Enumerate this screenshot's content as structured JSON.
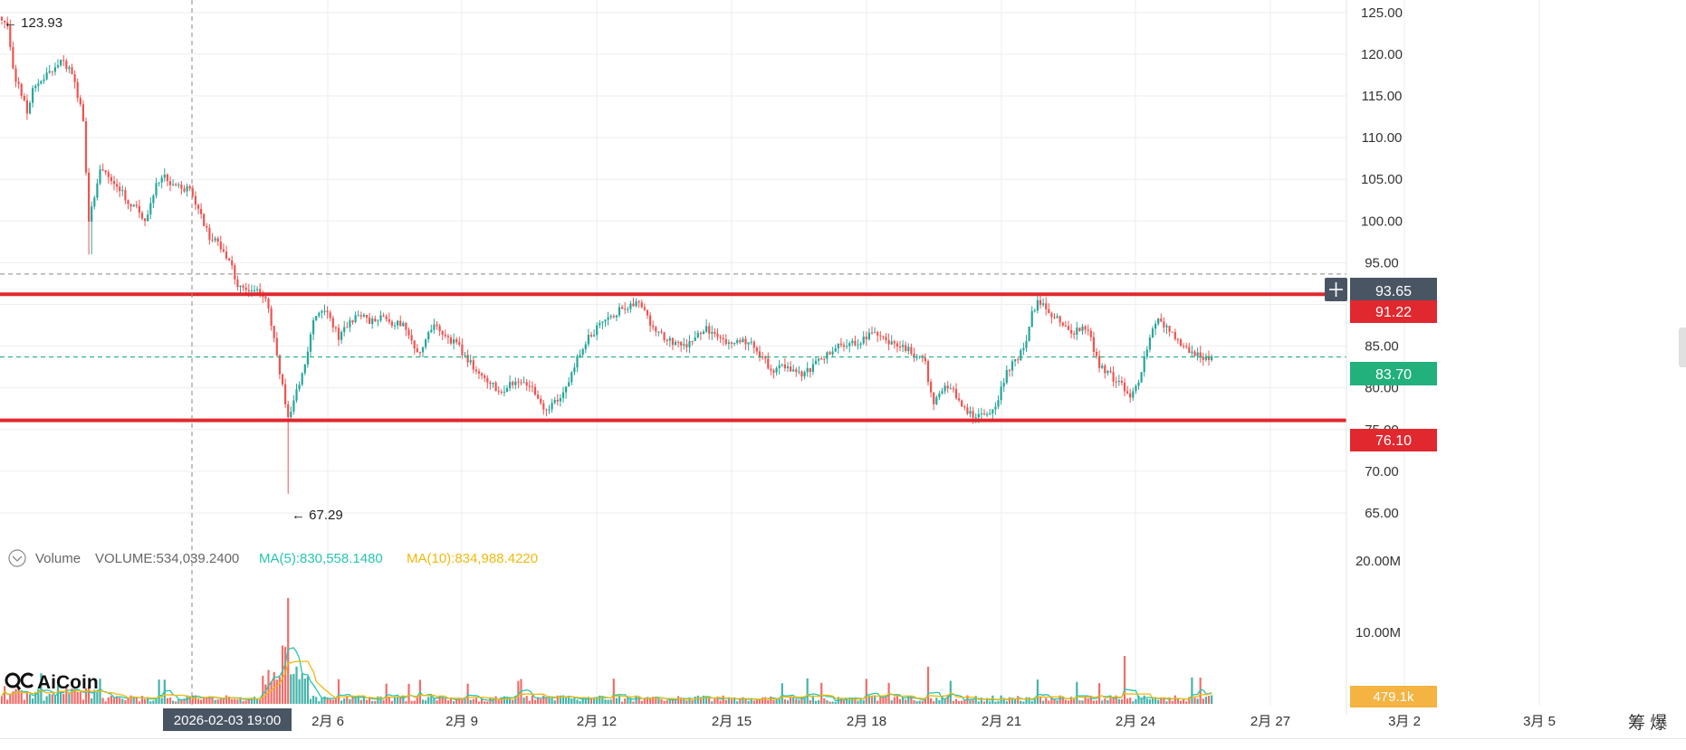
{
  "colors": {
    "up": "#26a69a",
    "down": "#ef5350",
    "red_line": "#e0282e",
    "current_price": "#22b07d",
    "crosshair_box": "#4a5564",
    "volume_box": "#f5b342",
    "ma5": "#26c6b0",
    "ma10": "#f0b90b",
    "grid": "#eeeeee"
  },
  "crosshair": {
    "price": "93.65",
    "time": "2026-02-03 19:00",
    "plus_icon": "plus-icon"
  },
  "markers": {
    "high": "← 123.93",
    "low": "← 67.29"
  },
  "levels": {
    "resistance": "91.22",
    "current": "83.70",
    "support": "76.10"
  },
  "volume_panel": {
    "toggle_icon": "chevron-down-circle-icon",
    "label": "Volume",
    "volume": "VOLUME:534,039.2400",
    "ma5": "MA(5):830,558.1480",
    "ma10": "MA(10):834,988.4220",
    "last_value": "479.1k"
  },
  "logo": {
    "text": "AiCoin",
    "icon": "aicoin-logo-icon"
  },
  "corner_text": "筹 爆",
  "chart_data": {
    "type": "candlestick",
    "price_axis": {
      "ticks": [
        "125.00",
        "120.00",
        "115.00",
        "110.00",
        "105.00",
        "100.00",
        "95.00",
        "90.00",
        "85.00",
        "80.00",
        "75.00",
        "70.00",
        "65.00"
      ],
      "range": [
        62.5,
        126.5
      ]
    },
    "volume_axis": {
      "ticks": [
        "20.00M",
        "10.00M"
      ],
      "range": [
        0,
        21000000
      ]
    },
    "time_axis": {
      "ticks": [
        "2月 6",
        "2月 9",
        "2月 12",
        "2月 15",
        "2月 18",
        "2月 21",
        "2月 24",
        "2月 27",
        "3月 2",
        "3月 5"
      ]
    },
    "horizontal_lines": [
      {
        "price": 91.22,
        "label": "91.22",
        "style": "solid-red"
      },
      {
        "price": 76.1,
        "label": "76.10",
        "style": "solid-red"
      },
      {
        "price": 83.7,
        "label": "83.70",
        "style": "dashed-green"
      },
      {
        "price": 93.65,
        "label": "93.65",
        "style": "dashed-gray"
      }
    ],
    "path": [
      [
        0,
        124.5
      ],
      [
        8,
        123.5
      ],
      [
        14,
        118
      ],
      [
        22,
        116
      ],
      [
        30,
        113
      ],
      [
        38,
        116.5
      ],
      [
        48,
        117
      ],
      [
        58,
        118
      ],
      [
        66,
        119
      ],
      [
        76,
        118.5
      ],
      [
        84,
        116
      ],
      [
        92,
        112
      ],
      [
        98,
        100
      ],
      [
        104,
        103
      ],
      [
        110,
        106
      ],
      [
        120,
        105.5
      ],
      [
        132,
        104
      ],
      [
        142,
        102
      ],
      [
        150,
        102
      ],
      [
        160,
        100
      ],
      [
        168,
        103
      ],
      [
        178,
        105.5
      ],
      [
        190,
        104.5
      ],
      [
        200,
        104
      ],
      [
        212,
        103.5
      ],
      [
        220,
        101
      ],
      [
        232,
        98
      ],
      [
        244,
        97
      ],
      [
        254,
        95
      ],
      [
        264,
        92
      ],
      [
        274,
        91.5
      ],
      [
        284,
        92
      ],
      [
        294,
        90.5
      ],
      [
        302,
        86
      ],
      [
        312,
        80
      ],
      [
        318,
        76.5
      ],
      [
        326,
        79
      ],
      [
        336,
        82
      ],
      [
        346,
        88
      ],
      [
        354,
        89.5
      ],
      [
        364,
        88.5
      ],
      [
        374,
        86
      ],
      [
        386,
        88
      ],
      [
        398,
        88.5
      ],
      [
        410,
        88
      ],
      [
        420,
        88.5
      ],
      [
        430,
        87.5
      ],
      [
        440,
        88
      ],
      [
        452,
        86.5
      ],
      [
        462,
        84
      ],
      [
        472,
        86.5
      ],
      [
        482,
        87.5
      ],
      [
        494,
        86
      ],
      [
        506,
        85
      ],
      [
        516,
        83.5
      ],
      [
        530,
        81.5
      ],
      [
        542,
        80.5
      ],
      [
        554,
        79.5
      ],
      [
        566,
        80.5
      ],
      [
        578,
        81
      ],
      [
        590,
        79.5
      ],
      [
        602,
        77.5
      ],
      [
        614,
        78.5
      ],
      [
        626,
        80
      ],
      [
        638,
        83.5
      ],
      [
        650,
        86
      ],
      [
        662,
        87.5
      ],
      [
        674,
        88.5
      ],
      [
        686,
        89.5
      ],
      [
        698,
        90
      ],
      [
        706,
        90.5
      ],
      [
        716,
        88
      ],
      [
        728,
        86.5
      ],
      [
        742,
        85.5
      ],
      [
        756,
        85
      ],
      [
        768,
        86
      ],
      [
        780,
        87
      ],
      [
        792,
        86.5
      ],
      [
        802,
        85
      ],
      [
        814,
        85.5
      ],
      [
        828,
        85.5
      ],
      [
        840,
        84
      ],
      [
        852,
        82
      ],
      [
        864,
        82.5
      ],
      [
        876,
        82
      ],
      [
        888,
        81.5
      ],
      [
        900,
        83
      ],
      [
        912,
        84
      ],
      [
        924,
        85
      ],
      [
        936,
        85.5
      ],
      [
        948,
        85.5
      ],
      [
        960,
        86.5
      ],
      [
        972,
        86
      ],
      [
        984,
        85.5
      ],
      [
        996,
        85
      ],
      [
        1010,
        84
      ],
      [
        1022,
        83
      ],
      [
        1030,
        78
      ],
      [
        1042,
        80
      ],
      [
        1054,
        79.5
      ],
      [
        1066,
        77.5
      ],
      [
        1078,
        76.5
      ],
      [
        1090,
        76.5
      ],
      [
        1102,
        78.5
      ],
      [
        1112,
        82
      ],
      [
        1124,
        83.5
      ],
      [
        1134,
        86
      ],
      [
        1140,
        89
      ],
      [
        1146,
        90.5
      ],
      [
        1154,
        89.5
      ],
      [
        1166,
        88.5
      ],
      [
        1176,
        87
      ],
      [
        1186,
        86.5
      ],
      [
        1196,
        87.5
      ],
      [
        1204,
        86
      ],
      [
        1214,
        82.5
      ],
      [
        1226,
        81.5
      ],
      [
        1238,
        80.5
      ],
      [
        1248,
        79
      ],
      [
        1256,
        80.5
      ],
      [
        1264,
        83.5
      ],
      [
        1272,
        86.5
      ],
      [
        1280,
        88.5
      ],
      [
        1290,
        87
      ],
      [
        1300,
        86
      ],
      [
        1310,
        84.5
      ],
      [
        1322,
        84
      ],
      [
        1332,
        83.5
      ],
      [
        1340,
        83.7
      ]
    ]
  }
}
